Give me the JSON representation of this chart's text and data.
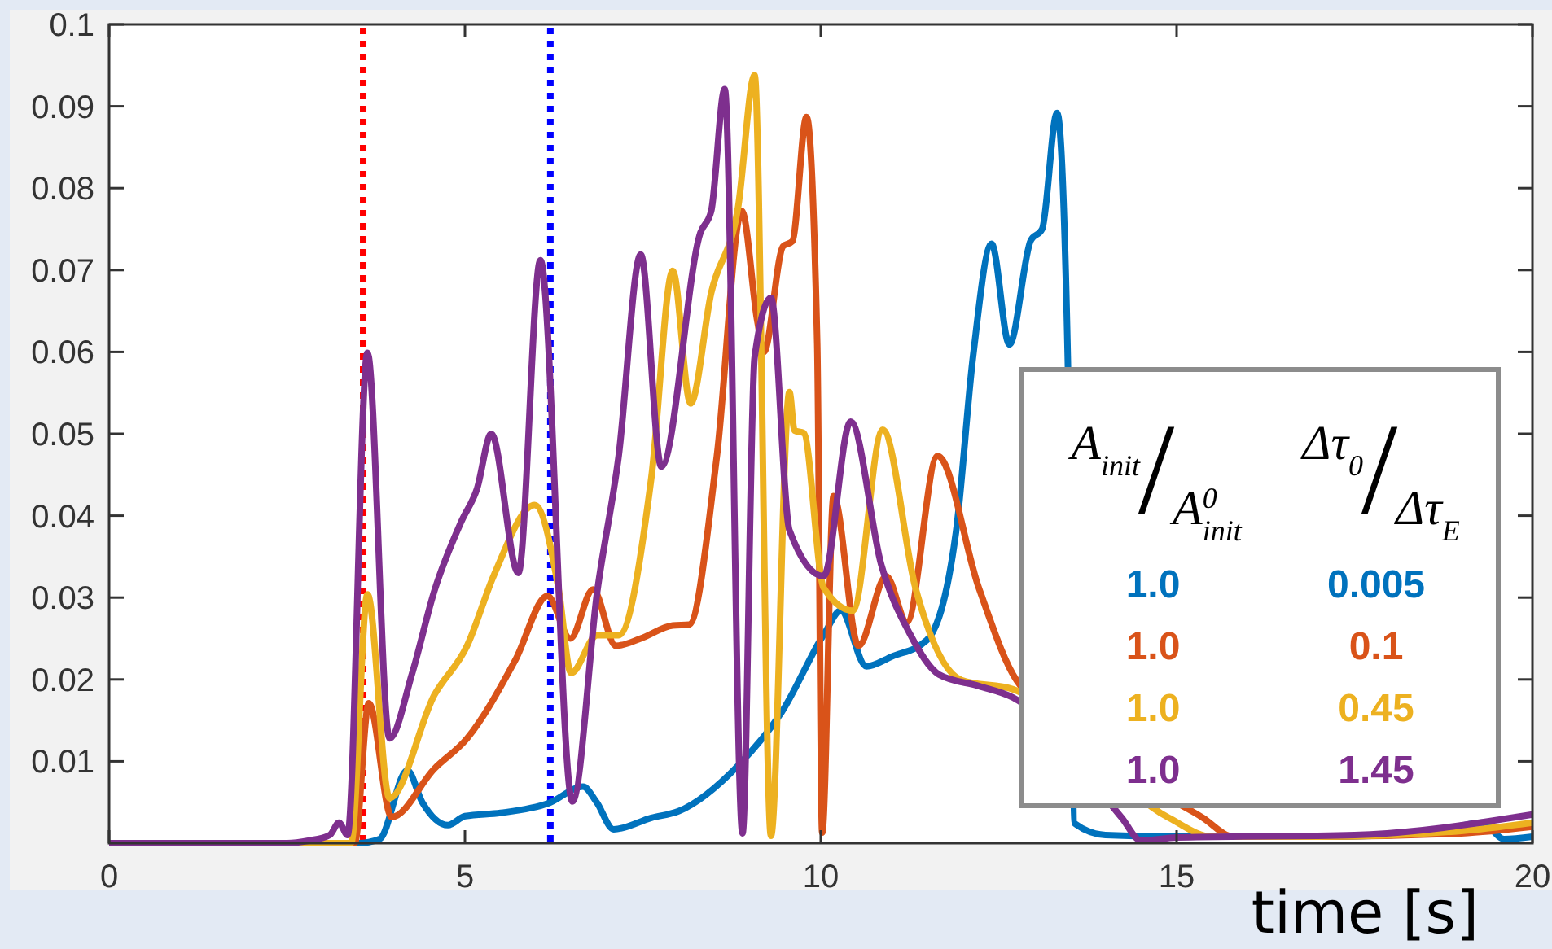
{
  "chart_data": {
    "type": "line",
    "xlabel": "time [s]",
    "xlim": [
      0,
      20
    ],
    "xticks": [
      0,
      5,
      10,
      15,
      20
    ],
    "ylim": [
      0,
      0.1
    ],
    "yticks": [
      0.01,
      0.02,
      0.03,
      0.04,
      0.05,
      0.06,
      0.07,
      0.08,
      0.09,
      0.1
    ],
    "grid": false,
    "line_style": "solid",
    "marker": "none",
    "legend_title": "A$_{init}$/A$^{0}$$_{init}$ Δτ$_{0}$/Δτ$_{E}$",
    "ref_lines": [
      {
        "axis": "x",
        "value": 3.57,
        "color": "#ff0000",
        "line_style": "dotted"
      },
      {
        "axis": "x",
        "value": 6.2,
        "color": "#0000ff",
        "line_style": "dotted"
      }
    ],
    "series": [
      {
        "name": "1.0 0.005",
        "color": "#0072bd",
        "x": [
          0,
          3.5,
          3.8,
          4.19,
          4.4,
          4.76,
          5.0,
          5.5,
          6.18,
          6.66,
          6.85,
          7.09,
          7.62,
          8.0,
          8.84,
          9.45,
          10.05,
          10.28,
          10.64,
          11.0,
          11.49,
          11.9,
          12.14,
          12.4,
          12.65,
          12.95,
          13.11,
          13.32,
          13.47,
          13.57,
          14.0,
          15.0,
          17.0,
          18.5,
          19.3,
          19.6,
          20.0
        ],
        "values": [
          0,
          0,
          0.0005,
          0.0089,
          0.005,
          0.0022,
          0.0033,
          0.0037,
          0.0049,
          0.0069,
          0.005,
          0.0017,
          0.0031,
          0.0039,
          0.0095,
          0.016,
          0.0256,
          0.0284,
          0.0216,
          0.0228,
          0.0248,
          0.038,
          0.0595,
          0.0732,
          0.0609,
          0.0736,
          0.075,
          0.0892,
          0.0595,
          0.0024,
          0.001,
          0.0008,
          0.0008,
          0.0012,
          0.0025,
          0.0005,
          0.0008
        ]
      },
      {
        "name": "1.0 0.1",
        "color": "#d95319",
        "x": [
          0,
          3.45,
          3.65,
          3.97,
          4.57,
          5.03,
          5.71,
          6.16,
          6.48,
          6.8,
          7.12,
          7.47,
          7.92,
          8.15,
          8.54,
          8.89,
          9.11,
          9.2,
          9.47,
          9.6,
          9.8,
          9.95,
          10.02,
          10.18,
          10.53,
          10.92,
          11.21,
          11.64,
          12.22,
          12.75,
          15.37,
          15.8,
          17.0,
          19.0,
          20.0
        ],
        "values": [
          0,
          0,
          0.0171,
          0.0032,
          0.0091,
          0.0128,
          0.0224,
          0.0302,
          0.025,
          0.031,
          0.0241,
          0.025,
          0.0266,
          0.0267,
          0.0473,
          0.0772,
          0.0637,
          0.06,
          0.0729,
          0.0735,
          0.0887,
          0.061,
          0.0013,
          0.0424,
          0.0241,
          0.0326,
          0.027,
          0.0473,
          0.0312,
          0.0199,
          0.0031,
          0.0008,
          0.0008,
          0.0012,
          0.002
        ]
      },
      {
        "name": "1.0 0.45",
        "color": "#edb120",
        "x": [
          0,
          3.4,
          3.63,
          3.94,
          4.57,
          5.03,
          5.41,
          5.98,
          6.32,
          6.49,
          6.86,
          7.16,
          7.62,
          7.92,
          8.17,
          8.46,
          8.84,
          9.07,
          9.3,
          9.56,
          9.63,
          9.76,
          10.04,
          10.45,
          10.87,
          11.33,
          11.98,
          12.7,
          14.89,
          15.5,
          17.0,
          19.0,
          20.0
        ],
        "values": [
          0,
          0,
          0.0304,
          0.0055,
          0.0181,
          0.0241,
          0.0328,
          0.0413,
          0.0308,
          0.0208,
          0.0254,
          0.0254,
          0.0447,
          0.0699,
          0.0537,
          0.0672,
          0.0778,
          0.0938,
          0.0009,
          0.0551,
          0.0504,
          0.0501,
          0.0312,
          0.0284,
          0.0505,
          0.0312,
          0.0199,
          0.0188,
          0.0031,
          0.0008,
          0.0008,
          0.0015,
          0.0025
        ]
      },
      {
        "name": "1.0 1.45",
        "color": "#7e2f8e",
        "x": [
          0,
          2.5,
          2.8,
          3.1,
          3.23,
          3.35,
          3.63,
          3.94,
          4.26,
          4.57,
          4.95,
          5.17,
          5.37,
          5.75,
          6.06,
          6.51,
          6.86,
          7.16,
          7.47,
          7.76,
          8.31,
          8.46,
          8.65,
          8.9,
          9.07,
          9.3,
          9.56,
          10.04,
          10.42,
          10.85,
          11.25,
          11.66,
          12.22,
          12.7,
          14.23,
          14.5,
          15.0,
          17.5,
          20.0
        ],
        "values": [
          0,
          0,
          0.0003,
          0.001,
          0.0025,
          0.001,
          0.0599,
          0.0128,
          0.0208,
          0.0308,
          0.0393,
          0.0433,
          0.05,
          0.033,
          0.0712,
          0.0051,
          0.0308,
          0.0473,
          0.0719,
          0.046,
          0.0746,
          0.0772,
          0.0921,
          0.0012,
          0.0593,
          0.0666,
          0.0382,
          0.0326,
          0.0515,
          0.034,
          0.0256,
          0.0206,
          0.0192,
          0.0178,
          0.0031,
          0.0003,
          0.0007,
          0.001,
          0.0035
        ]
      }
    ]
  }
}
